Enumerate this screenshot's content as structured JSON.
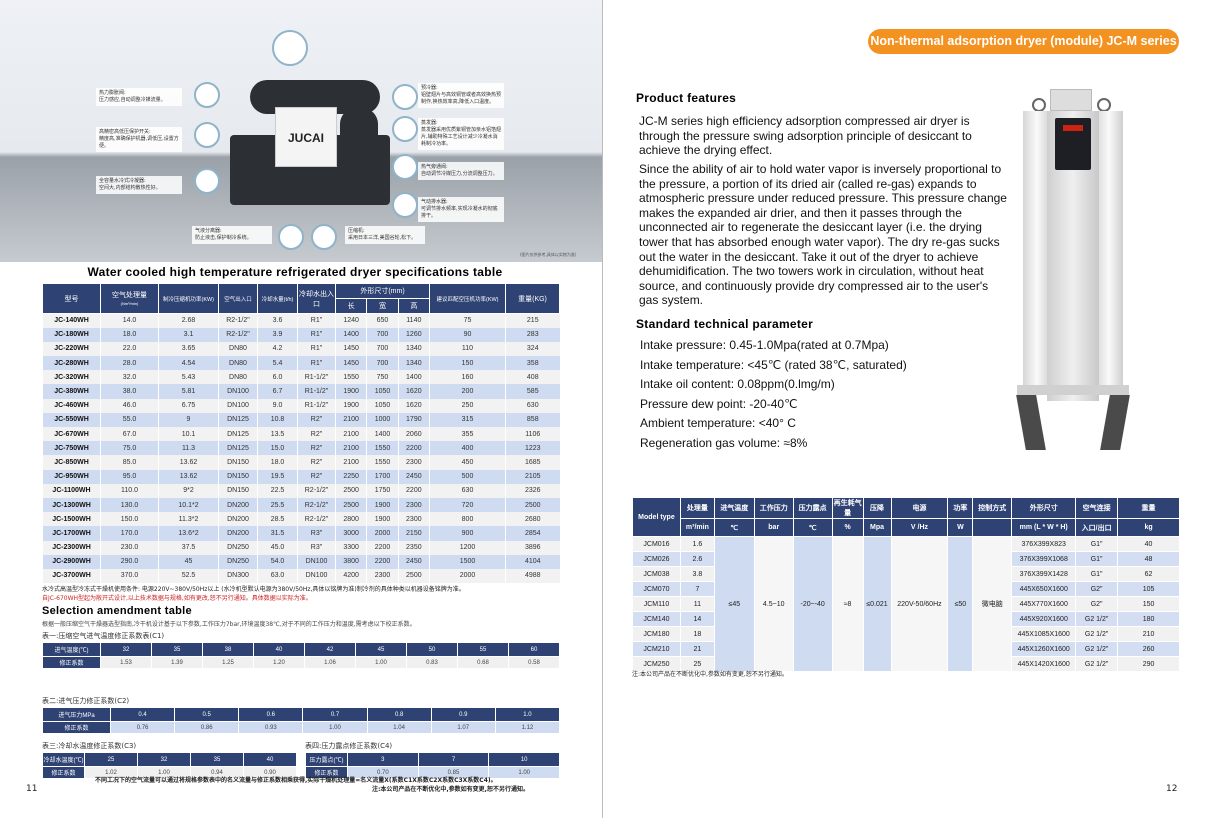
{
  "left_page": {
    "photo": {
      "brand": "JUCAI",
      "disclaimer": "(图片仅供参考,具体以实物为准)",
      "callouts": [
        {
          "title": "热力膨胀阀:",
          "text": "压力感应,自动调整冷媒流量。"
        },
        {
          "title": "高精密高低压保护开关:",
          "text": "精度高,准确保护机器,调低压,设置方便。"
        },
        {
          "title": "全容量水冷式冷凝器:",
          "text": "空间大,内部结构散热性好。"
        },
        {
          "title": "预冷器:",
          "text": "铝壁翅片与高效铜管或者高效换热预制作,换热效率高,降低入口温度。"
        },
        {
          "title": "蒸发器:",
          "text": "蒸发器采用优质紫铜管加亲水铝箔翅片,辅助特殊工艺设计减少冷凝水消耗制冷功率。"
        },
        {
          "title": "热气旁通阀:",
          "text": "自动调节冷媒压力,分流调整压力。"
        },
        {
          "title": "气动排水器:",
          "text": "可调节排水频率,实现冷凝水的彻底排干。"
        },
        {
          "title": "气液分离器:",
          "text": "防止液击,保护制冷系统。"
        },
        {
          "title": "压缩机:",
          "text": "采用日本三洋,美国谷轮,松下。"
        }
      ]
    },
    "spec_title": "Water cooled high temperature refrigerated dryer specifications table",
    "spec_table": {
      "headers": [
        "型号",
        "空气处理量",
        "(Nm³/min)",
        "制冷压缩机功率(KW)",
        "空气出入口",
        "冷却水量(t/h)",
        "冷却水出入口",
        "外形尺寸(mm)",
        "长",
        "宽",
        "高",
        "建议匹配空压机功率(KW)",
        "重量(KG)"
      ],
      "rows": [
        [
          "JC-140WH",
          "14.0",
          "2.68",
          "R2-1/2\"",
          "3.6",
          "R1\"",
          "1240",
          "650",
          "1140",
          "75",
          "215"
        ],
        [
          "JC-180WH",
          "18.0",
          "3.1",
          "R2-1/2\"",
          "3.9",
          "R1\"",
          "1400",
          "700",
          "1260",
          "90",
          "283"
        ],
        [
          "JC-220WH",
          "22.0",
          "3.65",
          "DN80",
          "4.2",
          "R1\"",
          "1450",
          "700",
          "1340",
          "110",
          "324"
        ],
        [
          "JC-280WH",
          "28.0",
          "4.54",
          "DN80",
          "5.4",
          "R1\"",
          "1450",
          "700",
          "1340",
          "150",
          "358"
        ],
        [
          "JC-320WH",
          "32.0",
          "5.43",
          "DN80",
          "6.0",
          "R1-1/2\"",
          "1550",
          "750",
          "1400",
          "160",
          "408"
        ],
        [
          "JC-380WH",
          "38.0",
          "5.81",
          "DN100",
          "6.7",
          "R1-1/2\"",
          "1900",
          "1050",
          "1620",
          "200",
          "585"
        ],
        [
          "JC-460WH",
          "46.0",
          "6.75",
          "DN100",
          "9.0",
          "R1-1/2\"",
          "1900",
          "1050",
          "1620",
          "250",
          "630"
        ],
        [
          "JC-550WH",
          "55.0",
          "9",
          "DN125",
          "10.8",
          "R2\"",
          "2100",
          "1000",
          "1790",
          "315",
          "858"
        ],
        [
          "JC-670WH",
          "67.0",
          "10.1",
          "DN125",
          "13.5",
          "R2\"",
          "2100",
          "1400",
          "2060",
          "355",
          "1106"
        ],
        [
          "JC-750WH",
          "75.0",
          "11.3",
          "DN125",
          "15.0",
          "R2\"",
          "2100",
          "1550",
          "2200",
          "400",
          "1223"
        ],
        [
          "JC-850WH",
          "85.0",
          "13.62",
          "DN150",
          "18.0",
          "R2\"",
          "2100",
          "1550",
          "2300",
          "450",
          "1685"
        ],
        [
          "JC-950WH",
          "95.0",
          "13.62",
          "DN150",
          "19.5",
          "R2\"",
          "2250",
          "1700",
          "2450",
          "500",
          "2105"
        ],
        [
          "JC-1100WH",
          "110.0",
          "9*2",
          "DN150",
          "22.5",
          "R2-1/2\"",
          "2500",
          "1750",
          "2200",
          "630",
          "2326"
        ],
        [
          "JC-1300WH",
          "130.0",
          "10.1*2",
          "DN200",
          "25.5",
          "R2-1/2\"",
          "2500",
          "1900",
          "2300",
          "720",
          "2500"
        ],
        [
          "JC-1500WH",
          "150.0",
          "11.3*2",
          "DN200",
          "28.5",
          "R2-1/2\"",
          "2800",
          "1900",
          "2300",
          "800",
          "2680"
        ],
        [
          "JC-1700WH",
          "170.0",
          "13.6*2",
          "DN200",
          "31.5",
          "R3\"",
          "3000",
          "2000",
          "2150",
          "900",
          "2854"
        ],
        [
          "JC-2300WH",
          "230.0",
          "37.5",
          "DN250",
          "45.0",
          "R3\"",
          "3300",
          "2200",
          "2350",
          "1200",
          "3896"
        ],
        [
          "JC-2900WH",
          "290.0",
          "45",
          "DN250",
          "54.0",
          "DN100",
          "3800",
          "2200",
          "2450",
          "1500",
          "4104"
        ],
        [
          "JC-3700WH",
          "370.0",
          "52.5",
          "DN300",
          "63.0",
          "DN100",
          "4200",
          "2300",
          "2500",
          "2000",
          "4988"
        ]
      ]
    },
    "notes": [
      "水冷式高温型冷冻式干燥机使用条件: 电源220V~380V/50Hz以上 (水冷机型默认电源为380V/50Hz,具体以铭牌为准)制冷剂的具体种类以机器设备铭牌为准。",
      "自JC-670WH型起为敞开式设计,以上技术数据与规格,如有更改,恕不另行通知。具体数据以实际为准。"
    ],
    "selection_title": "Selection amendment table",
    "selection_intro": "根据一般压缩空气干燥器选型指南,冷干机设计基于以下参数,工作压力7bar,环境温度38℃,对于不同的工作压力和温度,需考虑以下校正系数。",
    "c1": {
      "title": "表一:压缩空气进气温度修正系数表(C1)",
      "label1": "进气温度(℃)",
      "label2": "修正系数",
      "keys": [
        "32",
        "35",
        "38",
        "40",
        "42",
        "45",
        "50",
        "55",
        "60"
      ],
      "values": [
        "1.53",
        "1.39",
        "1.25",
        "1.20",
        "1.06",
        "1.00",
        "0.83",
        "0.68",
        "0.58"
      ]
    },
    "c2": {
      "title": "表二:进气压力修正系数(C2)",
      "label1": "进气压力MPa",
      "label2": "修正系数",
      "keys": [
        "0.4",
        "0.5",
        "0.6",
        "0.7",
        "0.8",
        "0.9",
        "1.0"
      ],
      "values": [
        "0.76",
        "0.86",
        "0.93",
        "1.00",
        "1.04",
        "1.07",
        "1.12"
      ]
    },
    "c3": {
      "title": "表三:冷却水温度修正系数(C3)",
      "label1": "冷却水温度(℃)",
      "label2": "修正系数",
      "keys": [
        "25",
        "32",
        "35",
        "40"
      ],
      "values": [
        "1.02",
        "1.00",
        "0.94",
        "0.90"
      ]
    },
    "c4": {
      "title": "表四:压力露点修正系数(C4)",
      "label1": "压力露点(℃)",
      "label2": "修正系数",
      "keys": [
        "3",
        "7",
        "10"
      ],
      "values": [
        "0.70",
        "0.85",
        "1.00"
      ]
    },
    "formula": "不同工况下的空气流量可以通过将规格参数表中的名义流量与修正系数相乘获得,实际干燥机处理量=名义流量X(系数C1X系数C2X系数C3X系数C4)。",
    "footnote": "注:本公司产品在不断优化中,参数如有变更,恕不另行通知。",
    "page_number": "11"
  },
  "right_page": {
    "badge": "Non-thermal adsorption dryer (module) JC-M series",
    "features_title": "Product features",
    "features_p1": "JC-M series high efficiency adsorption compressed air dryer is through the pressure swing adsorption principle of desiccant to achieve the drying effect.",
    "features_p2": "Since the ability of air to hold water vapor is inversely proportional to the pressure, a portion of its dried air (called re-gas) expands to atmospheric pressure under reduced pressure. This pressure change makes the expanded air drier, and then it passes through the unconnected air to regenerate the desiccant layer (i.e. the drying tower that has absorbed enough water vapor). The dry re-gas sucks out the water in the desiccant. Take it out of the dryer to achieve dehumidification. The two towers work in circulation, without heat source, and continuously provide dry compressed air to the user's gas system.",
    "params_title": "Standard technical parameter",
    "params": [
      "Intake pressure: 0.45-1.0Mpa(rated at 0.7Mpa)",
      "Intake temperature: <45℃ (rated 38℃, saturated)",
      "Intake oil content: 0.08ppm(0.lmg/m)",
      "Pressure dew point: -20-40℃",
      "Ambient temperature: <40° C",
      "Regeneration gas volume: ≈8%"
    ],
    "table": {
      "headers": [
        "Model type",
        "处理量",
        "进气温度",
        "工作压力",
        "压力露点",
        "再生耗气量",
        "压降",
        "电源",
        "功率",
        "控制方式",
        "外形尺寸",
        "空气连接",
        "重量"
      ],
      "units": [
        "m³/min",
        "℃",
        "bar",
        "℃",
        "%",
        "Mpa",
        "V /Hz",
        "W",
        "",
        "mm (L * W * H)",
        "入口/出口",
        "kg"
      ],
      "shared": [
        "≤45",
        "4.5~10",
        "-20~-40",
        "≈8",
        "≤0.021",
        "220V-50/60Hz",
        "≤50",
        "微电脑"
      ],
      "rows": [
        [
          "JCM016",
          "1.6",
          "376X399X823",
          "G1\"",
          "40"
        ],
        [
          "JCM026",
          "2.6",
          "376X399X1068",
          "G1\"",
          "48"
        ],
        [
          "JCM038",
          "3.8",
          "376X399X1428",
          "G1\"",
          "62"
        ],
        [
          "JCM070",
          "7",
          "445X650X1600",
          "G2\"",
          "105"
        ],
        [
          "JCM110",
          "11",
          "445X770X1600",
          "G2\"",
          "150"
        ],
        [
          "JCM140",
          "14",
          "445X920X1600",
          "G2 1/2\"",
          "180"
        ],
        [
          "JCM180",
          "18",
          "445X1085X1600",
          "G2 1/2\"",
          "210"
        ],
        [
          "JCM210",
          "21",
          "445X1260X1600",
          "G2 1/2\"",
          "260"
        ],
        [
          "JCM250",
          "25",
          "445X1420X1600",
          "G2 1/2\"",
          "290"
        ]
      ]
    },
    "footnote": "注:本公司产品在不断优化中,参数如有变更,恕不另行通知。",
    "page_number": "12"
  },
  "colors": {
    "header_navy": "#2e4273",
    "row_blue": "#cfdbf0",
    "badge_orange": "#f39220"
  }
}
